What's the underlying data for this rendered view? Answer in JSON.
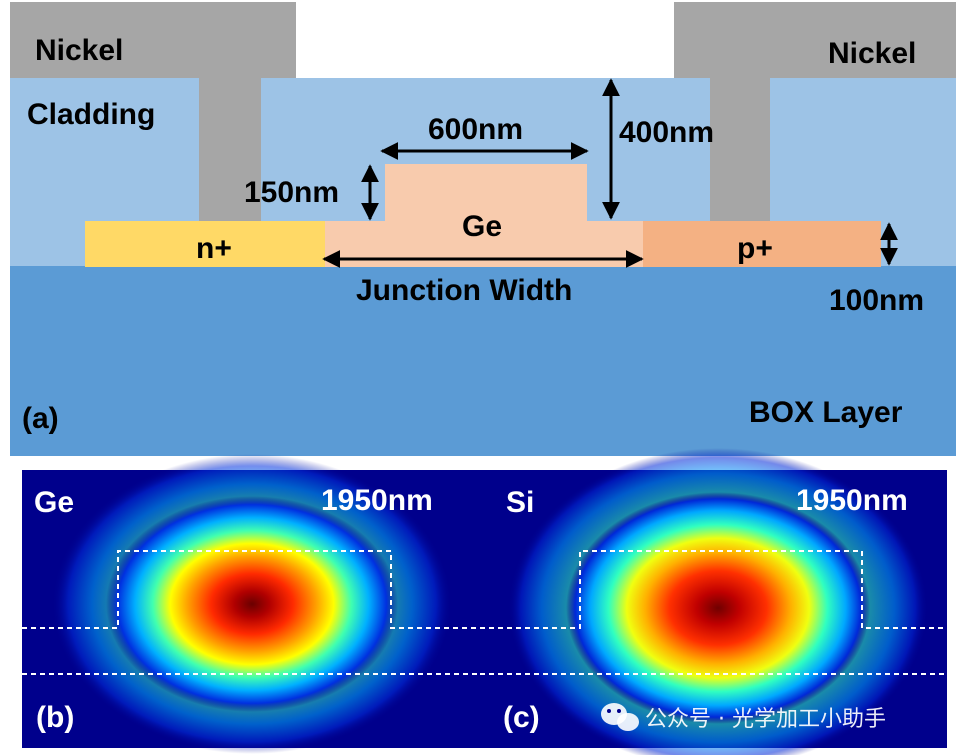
{
  "panel_a": {
    "panel_label": "(a)",
    "nickel_left": "Nickel",
    "nickel_right": "Nickel",
    "cladding": "Cladding",
    "ge": "Ge",
    "n_plus": "n+",
    "p_plus": "p+",
    "dim_600": "600nm",
    "dim_400": "400nm",
    "dim_150": "150nm",
    "dim_100": "100nm",
    "junction_width": "Junction Width",
    "box_layer": "BOX Layer",
    "colors": {
      "nickel": "#a6a6a6",
      "cladding": "#9dc3e6",
      "box": "#5b9bd5",
      "ge": "#f8cbad",
      "n_plus": "#ffd966",
      "p_plus": "#f4b183"
    }
  },
  "panel_b": {
    "panel_label": "(b)",
    "material": "Ge",
    "wavelength": "1950nm"
  },
  "panel_c": {
    "panel_label": "(c)",
    "material": "Si",
    "wavelength": "1950nm"
  },
  "watermark": "公众号 · 光学加工小助手"
}
